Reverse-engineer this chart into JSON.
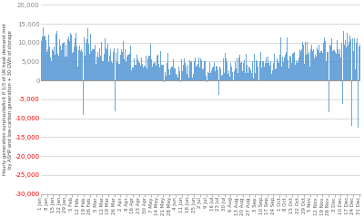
{
  "title": "",
  "ylabel": "Hourly generation surplus/deficit if 1/3 of UK heat demand met\nby ASHP and low-carbon generation + 30 GWh of storage",
  "ylim": [
    -30000,
    20000
  ],
  "yticks_positive": [
    0,
    5000,
    10000,
    15000,
    20000
  ],
  "yticks_negative": [
    -5000,
    -10000,
    -15000,
    -20000,
    -25000,
    -30000
  ],
  "bar_color": "#5B9BD5",
  "background_color": "#ffffff",
  "grid_color": "#CCCCCC",
  "n_points": 17520,
  "seed": 42,
  "positive_tick_color": "#888888",
  "negative_tick_color": "#FF0000",
  "tick_label_fontsize": 5.0,
  "ylabel_fontsize": 3.8
}
